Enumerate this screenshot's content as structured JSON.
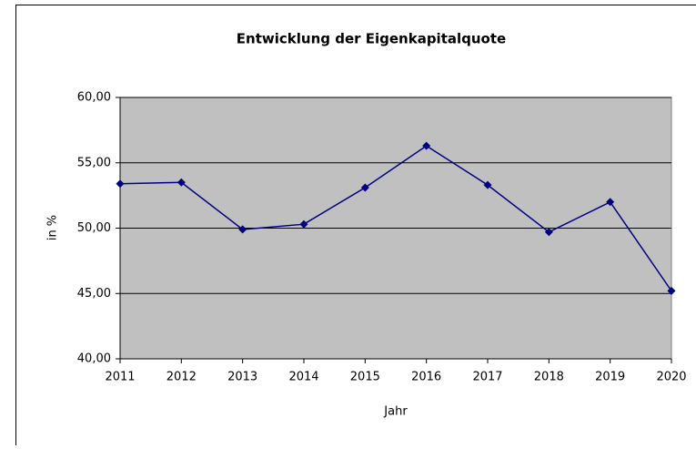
{
  "chart_data": {
    "type": "line",
    "title": "Entwicklung der Eigenkapitalquote",
    "x_label": "Jahr",
    "y_label": "in %",
    "x": [
      2011,
      2012,
      2013,
      2014,
      2015,
      2016,
      2017,
      2018,
      2019,
      2020
    ],
    "series": [
      {
        "name": "Eigenkapitalquote",
        "color": "#000080",
        "values": [
          53.4,
          53.5,
          49.9,
          50.3,
          53.1,
          56.3,
          53.3,
          49.7,
          52.0,
          45.2
        ]
      }
    ],
    "xlim": [
      2011,
      2020
    ],
    "xticks": [
      2011,
      2012,
      2013,
      2014,
      2015,
      2016,
      2017,
      2018,
      2019,
      2020
    ],
    "ylim": [
      40,
      60
    ],
    "yticks": [
      {
        "value": 40,
        "label": "40,00"
      },
      {
        "value": 45,
        "label": "45,00"
      },
      {
        "value": 50,
        "label": "50,00"
      },
      {
        "value": 55,
        "label": "55,00"
      },
      {
        "value": 60,
        "label": "60,00"
      }
    ],
    "grid": true,
    "plot_background": "#c0c0c0"
  }
}
